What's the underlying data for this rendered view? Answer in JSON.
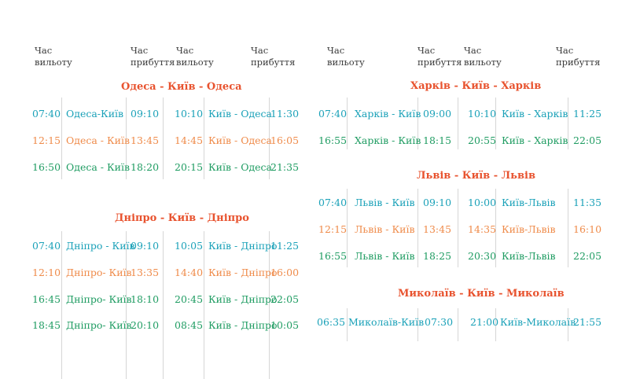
{
  "headers": {
    "departure": "Час\nвильоту",
    "arrival": "Час\nприбуття"
  },
  "colors": {
    "route_title": "#e8532f",
    "teal": "#1aa1b8",
    "orange": "#ef8b4a",
    "green": "#1f9c62"
  },
  "odesa": {
    "title": "Одеса - Київ - Одеса",
    "rows": [
      {
        "dep1": "07:40",
        "r1": "Одеса-Київ",
        "arr1": "09:10",
        "dep2": "10:10",
        "r2": "Київ - Одеса",
        "arr2": "11:30"
      },
      {
        "dep1": "12:15",
        "r1": "Одеса - Київ",
        "arr1": "13:45",
        "dep2": "14:45",
        "r2": "Київ - Одеса",
        "arr2": "16:05"
      },
      {
        "dep1": "16:50",
        "r1": "Одеса - Київ",
        "arr1": "18:20",
        "dep2": "20:15",
        "r2": "Київ - Одеса",
        "arr2": "21:35"
      }
    ]
  },
  "dnipro": {
    "title": "Дніпро - Київ - Дніпро",
    "rows": [
      {
        "dep1": "07:40",
        "r1": "Дніпро - Київ",
        "arr1": "09:10",
        "dep2": "10:05",
        "r2": "Київ - Дніпро",
        "arr2": "11:25"
      },
      {
        "dep1": "12:10",
        "r1": "Дніпро- Київ",
        "arr1": "13:35",
        "dep2": "14:40",
        "r2": "Київ - Дніпро",
        "arr2": "16:00"
      },
      {
        "dep1": "16:45",
        "r1": "Дніпро- Київ",
        "arr1": "18:10",
        "dep2": "20:45",
        "r2": "Київ - Дніпро",
        "arr2": "22:05"
      },
      {
        "dep1": "18:45",
        "r1": "Дніпро- Київ",
        "arr1": "20:10",
        "dep2": "08:45",
        "r2": "Київ - Дніпро",
        "arr2": "10:05"
      }
    ]
  },
  "kharkiv": {
    "title": "Харків - Київ - Харків",
    "rows": [
      {
        "dep1": "07:40",
        "r1": "Харків - Київ",
        "arr1": "09:00",
        "dep2": "10:10",
        "r2": "Київ - Харків",
        "arr2": "11:25"
      },
      {
        "dep1": "16:55",
        "r1": "Харків - Київ",
        "arr1": "18:15",
        "dep2": "20:55",
        "r2": "Київ - Харків",
        "arr2": "22:05"
      }
    ]
  },
  "lviv": {
    "title": "Львів - Київ - Львів",
    "rows": [
      {
        "dep1": "07:40",
        "r1": "Львів - Київ",
        "arr1": "09:10",
        "dep2": "10:00",
        "r2": "Київ-Львів",
        "arr2": "11:35"
      },
      {
        "dep1": "12:15",
        "r1": "Львів - Київ",
        "arr1": "13:45",
        "dep2": "14:35",
        "r2": "Київ-Львів",
        "arr2": "16:10"
      },
      {
        "dep1": "16:55",
        "r1": "Львів - Київ",
        "arr1": "18:25",
        "dep2": "20:30",
        "r2": "Київ-Львів",
        "arr2": "22:05"
      }
    ]
  },
  "mykolaiv": {
    "title": "Миколаїв - Київ - Миколаїв",
    "rows": [
      {
        "dep1": "06:35",
        "r1": "Миколаїв-Київ",
        "arr1": "07:30",
        "dep2": "21:00",
        "r2": "Київ-Миколаїв",
        "arr2": "21:55"
      }
    ]
  }
}
